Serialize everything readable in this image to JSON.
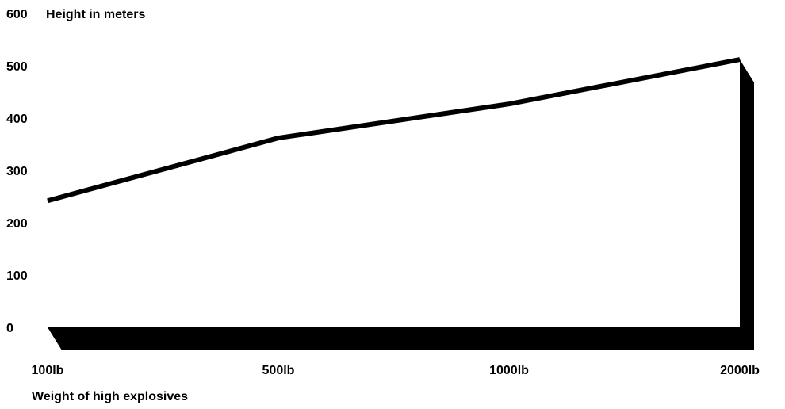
{
  "chart_data": {
    "type": "line",
    "title": "",
    "ylabel": "Height in meters",
    "xlabel": "Weight of high explosives",
    "categories": [
      "100lb",
      "500lb",
      "1000lb",
      "2000lb"
    ],
    "series": [
      {
        "values": [
          242,
          362,
          427,
          512
        ]
      }
    ],
    "ylim": [
      0,
      600
    ],
    "yticks": [
      0,
      100,
      200,
      300,
      400,
      500,
      600
    ],
    "grid": false,
    "legend": "none",
    "colors": {
      "line": "#000000",
      "base": "#000000",
      "background": "#ffffff"
    }
  }
}
